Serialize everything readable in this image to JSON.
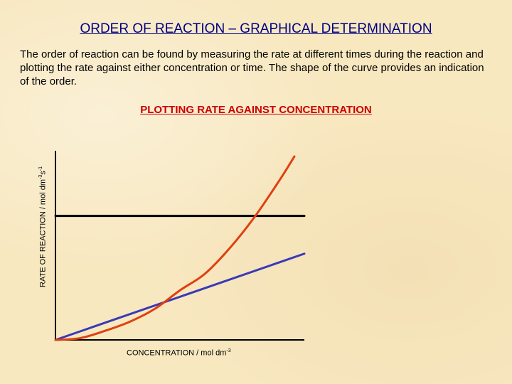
{
  "slide": {
    "title": "ORDER OF REACTION – GRAPHICAL DETERMINATION",
    "intro": "The order of reaction can be found by measuring the rate at different times during the reaction and plotting the rate against either concentration or time.  The shape of the curve provides an indication of the order."
  },
  "chart_data": {
    "type": "line",
    "title": "PLOTTING RATE AGAINST CONCENTRATION",
    "xlabel": {
      "text": "CONCENTRATION / mol dm",
      "sup": "-3"
    },
    "ylabel": {
      "parts": [
        {
          "text": "RATE OF REACTION / mol dm",
          "sup": "-3"
        },
        {
          "text": "s",
          "sup": "-1"
        }
      ]
    },
    "xlim": [
      0,
      10
    ],
    "ylim": [
      0,
      10
    ],
    "grid": false,
    "legend": "none",
    "colors": {
      "zero": "#000000",
      "first": "#3a3ab8",
      "second": "#e04010",
      "axes": "#000000"
    },
    "series": [
      {
        "id": "zero",
        "x": [
          0,
          10
        ],
        "y": [
          6.76,
          6.76
        ]
      },
      {
        "id": "first",
        "x": [
          0,
          10
        ],
        "y": [
          0,
          4.7
        ]
      },
      {
        "id": "second",
        "x": [
          0,
          1,
          2,
          3,
          4,
          5,
          6,
          7,
          8,
          9,
          9.6
        ],
        "y": [
          0,
          0.1,
          0.5,
          1.0,
          1.7,
          2.7,
          3.6,
          5.0,
          6.7,
          8.7,
          10
        ]
      }
    ]
  }
}
